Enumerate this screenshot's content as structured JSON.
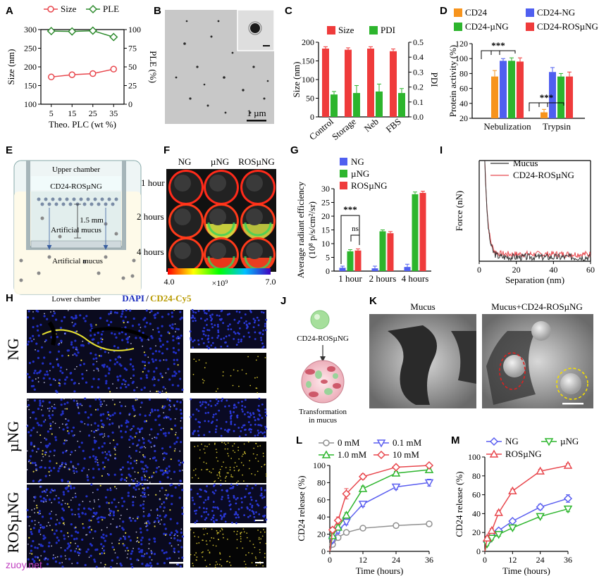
{
  "panels": {
    "A": "A",
    "B": "B",
    "C": "C",
    "D": "D",
    "E": "E",
    "F": "F",
    "G": "G",
    "H": "H",
    "I": "I",
    "J": "J",
    "K": "K",
    "L": "L",
    "M": "M"
  },
  "chart_data": [
    {
      "id": "A",
      "type": "line",
      "x": [
        5,
        15,
        25,
        35
      ],
      "xlabel": "Theo. PLC (wt %)",
      "ylabel": "Size (nm)",
      "ylim": [
        100,
        300
      ],
      "yticks": [
        100,
        150,
        200,
        250,
        300
      ],
      "y2label": "PLE (%)",
      "y2lim": [
        0,
        100
      ],
      "y2ticks": [
        0,
        25,
        50,
        75,
        100
      ],
      "series": [
        {
          "name": "Size",
          "axis": "left",
          "values": [
            173,
            179,
            182,
            194
          ],
          "errors": [
            3,
            3,
            3,
            6
          ],
          "color": "#e8474d"
        },
        {
          "name": "PLE",
          "axis": "right",
          "values": [
            98,
            97.5,
            98.5,
            90
          ],
          "errors": [
            1.5,
            1.5,
            1,
            2.5
          ],
          "color": "#2e8b2e"
        }
      ]
    },
    {
      "id": "C",
      "type": "bar",
      "categories": [
        "Control",
        "Storage",
        "Neb",
        "FBS"
      ],
      "ylabel": "Size (nm)",
      "ylim": [
        0,
        200
      ],
      "yticks": [
        0,
        50,
        100,
        150,
        200
      ],
      "y2label": "PDI",
      "y2lim": [
        0,
        0.5
      ],
      "y2ticks": [
        "0.0",
        "0.1",
        "0.2",
        "0.3",
        "0.4",
        "0.5"
      ],
      "series": [
        {
          "name": "Size",
          "axis": "left",
          "values": [
            183,
            180,
            183,
            176
          ],
          "errors": [
            5,
            5,
            5,
            6
          ],
          "color": "#ef3b3b"
        },
        {
          "name": "PDI",
          "axis": "right",
          "values": [
            0.15,
            0.16,
            0.17,
            0.16
          ],
          "errors": [
            0.02,
            0.05,
            0.05,
            0.03
          ],
          "color": "#2db52d"
        }
      ]
    },
    {
      "id": "D",
      "type": "bar",
      "categories": [
        "Nebulization",
        "Trypsin"
      ],
      "ylabel": "Protein activity (%)",
      "ylim": [
        20,
        120
      ],
      "yticks": [
        20,
        40,
        60,
        80,
        100,
        120
      ],
      "series": [
        {
          "name": "CD24",
          "values": [
            76,
            28
          ],
          "errors": [
            8,
            4
          ],
          "color": "#f7941d"
        },
        {
          "name": "CD24-NG",
          "values": [
            97,
            82
          ],
          "errors": [
            3,
            6
          ],
          "color": "#4f5ff0"
        },
        {
          "name": "CD24-µNG",
          "values": [
            97,
            76
          ],
          "errors": [
            4,
            4
          ],
          "color": "#2db52d"
        },
        {
          "name": "CD24-ROSµNG",
          "values": [
            96,
            76
          ],
          "errors": [
            5,
            6
          ],
          "color": "#ef3b3b"
        }
      ],
      "annotations": [
        "***",
        "***"
      ]
    },
    {
      "id": "G",
      "type": "bar",
      "categories": [
        "1 hour",
        "2 hours",
        "4 hours"
      ],
      "ylabel": "Average radiant efficiency",
      "ylabel2": "(10⁸ p/s/cm²/sr)",
      "ylim": [
        0,
        30
      ],
      "yticks": [
        0,
        5,
        10,
        15,
        20,
        25,
        30
      ],
      "series": [
        {
          "name": "NG",
          "values": [
            1.2,
            1.0,
            1.5
          ],
          "errors": [
            0.6,
            0.8,
            1.0
          ],
          "color": "#4f5ff0"
        },
        {
          "name": "µNG",
          "values": [
            7.2,
            14.5,
            28
          ],
          "errors": [
            0.6,
            0.5,
            0.8
          ],
          "color": "#2db52d"
        },
        {
          "name": "ROSµNG",
          "values": [
            7.5,
            13.8,
            28.5
          ],
          "errors": [
            0.6,
            0.6,
            0.6
          ],
          "color": "#ef3b3b"
        }
      ],
      "annotations": [
        "***",
        "ns"
      ]
    },
    {
      "id": "I",
      "type": "line",
      "xlabel": "Separation (nm)",
      "ylabel": "Force (nN)",
      "xlim": [
        0,
        60
      ],
      "xticks": [
        0,
        20,
        40,
        60
      ],
      "series": [
        {
          "name": "Mucus",
          "color": "#333333"
        },
        {
          "name": "CD24-ROSµNG",
          "color": "#e8474d"
        }
      ]
    },
    {
      "id": "L",
      "type": "line",
      "x": [
        0,
        1,
        3,
        6,
        12,
        24,
        36
      ],
      "xlabel": "Time (hours)",
      "ylabel": "CD24 release (%)",
      "xlim": [
        0,
        36
      ],
      "xticks": [
        0,
        12,
        24,
        36
      ],
      "ylim": [
        0,
        100
      ],
      "yticks": [
        0,
        20,
        40,
        60,
        80,
        100
      ],
      "series": [
        {
          "name": "0 mM",
          "values": [
            0,
            8,
            16,
            22,
            27,
            30,
            32
          ],
          "errors": [
            0,
            2,
            2,
            2,
            2,
            2,
            2
          ],
          "color": "#909090"
        },
        {
          "name": "0.1 mM",
          "values": [
            0,
            13,
            24,
            34,
            55,
            75,
            80
          ],
          "errors": [
            0,
            3,
            3,
            3,
            3,
            3,
            4
          ],
          "color": "#5b5ff0"
        },
        {
          "name": "1.0 mM",
          "values": [
            0,
            18,
            28,
            42,
            73,
            91,
            95
          ],
          "errors": [
            0,
            3,
            3,
            3,
            3,
            2,
            2
          ],
          "color": "#2db52d"
        },
        {
          "name": "10 mM",
          "values": [
            0,
            25,
            36,
            67,
            87,
            98,
            100
          ],
          "errors": [
            0,
            3,
            4,
            6,
            3,
            2,
            1
          ],
          "color": "#e8474d"
        }
      ]
    },
    {
      "id": "M",
      "type": "line",
      "x": [
        0,
        1,
        3,
        6,
        12,
        24,
        36
      ],
      "xlabel": "Time (hours)",
      "ylabel": "CD24 release (%)",
      "xlim": [
        0,
        36
      ],
      "xticks": [
        0,
        12,
        24,
        36
      ],
      "ylim": [
        0,
        100
      ],
      "yticks": [
        0,
        20,
        40,
        60,
        80,
        100
      ],
      "series": [
        {
          "name": "NG",
          "values": [
            0,
            10,
            17,
            22,
            32,
            47,
            56
          ],
          "errors": [
            0,
            2,
            2,
            2,
            2,
            3,
            4
          ],
          "color": "#5b5ff0"
        },
        {
          "name": "µNG",
          "values": [
            0,
            8,
            14,
            18,
            25,
            37,
            45
          ],
          "errors": [
            0,
            2,
            2,
            2,
            2,
            2,
            3
          ],
          "color": "#2db52d"
        },
        {
          "name": "ROSµNG",
          "values": [
            0,
            14,
            22,
            41,
            64,
            85,
            91
          ],
          "errors": [
            0,
            2,
            2,
            2,
            2,
            2,
            2
          ],
          "color": "#e8474d"
        }
      ]
    }
  ],
  "B": {
    "scalebar": "1 µm"
  },
  "E": {
    "upper": "Upper chamber",
    "particles": "CD24-ROSµNG",
    "depth": "1.5 mm",
    "mucus1": "Artificial mucus",
    "mucus2": "Artificial mucus",
    "lower": "Lower chamber"
  },
  "F": {
    "cols": [
      "NG",
      "µNG",
      "ROSµNG"
    ],
    "rows": [
      "1 hour",
      "2 hours",
      "4 hours"
    ],
    "cmin": "4.0",
    "cmax": "7.0",
    "cunit": "×10⁹"
  },
  "H": {
    "title_dapi": "DAPI",
    "title_sep": "/",
    "title_cy5": "CD24-Cy5",
    "rows": [
      "NG",
      "µNG",
      "ROSµNG"
    ]
  },
  "J": {
    "top": "CD24-ROSµNG",
    "bottom1": "Transformation",
    "bottom2": "in mucus"
  },
  "K": {
    "left": "Mucus",
    "right": "Mucus+CD24-ROSµNG"
  },
  "watermark": "zuoy.net"
}
